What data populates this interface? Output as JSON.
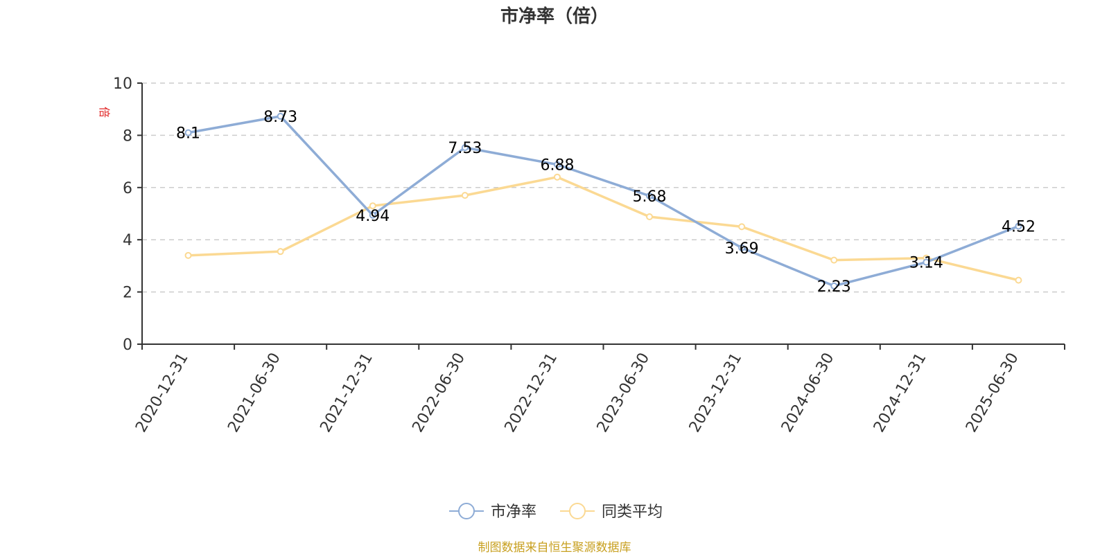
{
  "chart_data": {
    "type": "line",
    "title": "市净率（倍）",
    "ylabel": "倍",
    "ylim": [
      0,
      10
    ],
    "yticks": [
      0,
      2,
      4,
      6,
      8,
      10
    ],
    "categories": [
      "2020-12-31",
      "2021-06-30",
      "2021-12-31",
      "2022-06-30",
      "2022-12-31",
      "2023-06-30",
      "2023-12-31",
      "2024-06-30",
      "2024-12-31",
      "2025-06-30"
    ],
    "series": [
      {
        "name": "市净率",
        "color": "#8eacd6",
        "values": [
          8.1,
          8.73,
          4.94,
          7.53,
          6.88,
          5.68,
          3.69,
          2.23,
          3.14,
          4.52
        ],
        "labels": [
          "8.1",
          "8.73",
          "4.94",
          "7.53",
          "6.88",
          "5.68",
          "3.69",
          "2.23",
          "3.14",
          "4.52"
        ]
      },
      {
        "name": "同类平均",
        "color": "#fbd993",
        "values": [
          3.4,
          3.55,
          5.3,
          5.7,
          6.4,
          4.88,
          4.5,
          3.22,
          3.3,
          2.45
        ]
      }
    ],
    "grid": true,
    "legend_position": "bottom"
  },
  "source_note": "制图数据来自恒生聚源数据库"
}
